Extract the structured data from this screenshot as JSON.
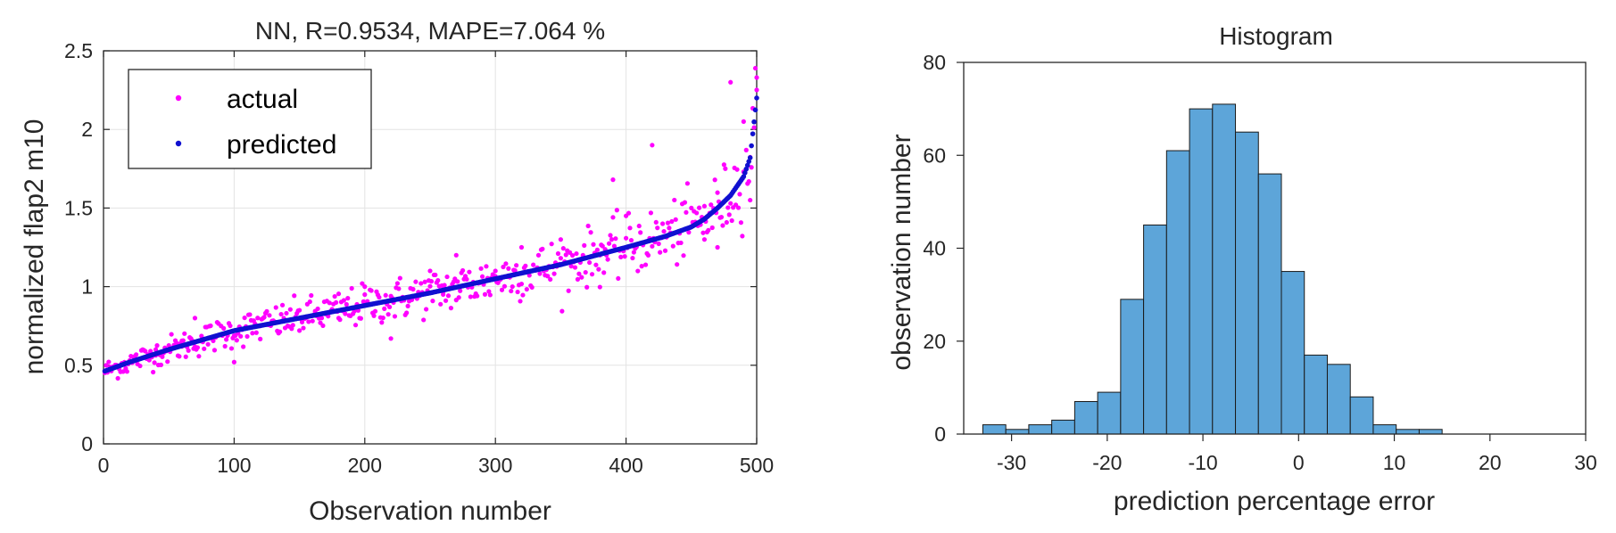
{
  "chart_data": [
    {
      "type": "scatter",
      "title": "NN, R=0.9534, MAPE=7.064 %",
      "xlabel": "Observation number",
      "ylabel": "normalized flap2 m10",
      "xlim": [
        0,
        500
      ],
      "ylim": [
        0,
        2.5
      ],
      "xticks": [
        "0",
        "100",
        "200",
        "300",
        "400",
        "500"
      ],
      "yticks": [
        "0",
        "0.5",
        "1",
        "1.5",
        "2",
        "2.5"
      ],
      "grid": true,
      "legend_position": "top-left",
      "n_points": 500,
      "series": [
        {
          "name": "actual",
          "color": "#ff00ff",
          "description_hint": "actual values scattered around predicted trend",
          "sample_points": [
            [
              5,
              0.48
            ],
            [
              10,
              0.5
            ],
            [
              20,
              0.53
            ],
            [
              40,
              0.6
            ],
            [
              60,
              0.62
            ],
            [
              70,
              0.8
            ],
            [
              100,
              0.52
            ],
            [
              120,
              0.75
            ],
            [
              150,
              0.85
            ],
            [
              180,
              0.8
            ],
            [
              200,
              1.0
            ],
            [
              220,
              0.67
            ],
            [
              250,
              1.1
            ],
            [
              260,
              0.95
            ],
            [
              270,
              1.2
            ],
            [
              300,
              1.1
            ],
            [
              320,
              1.25
            ],
            [
              350,
              1.3
            ],
            [
              380,
              1.2
            ],
            [
              390,
              1.68
            ],
            [
              400,
              1.45
            ],
            [
              420,
              1.9
            ],
            [
              450,
              1.5
            ],
            [
              460,
              1.3
            ],
            [
              470,
              1.25
            ],
            [
              480,
              2.3
            ],
            [
              490,
              2.05
            ],
            [
              495,
              1.55
            ],
            [
              500,
              2.33
            ]
          ]
        },
        {
          "name": "predicted",
          "color": "#1010d0",
          "curve": [
            [
              0,
              0.46
            ],
            [
              20,
              0.52
            ],
            [
              50,
              0.6
            ],
            [
              100,
              0.72
            ],
            [
              150,
              0.8
            ],
            [
              200,
              0.88
            ],
            [
              250,
              0.96
            ],
            [
              300,
              1.05
            ],
            [
              350,
              1.14
            ],
            [
              400,
              1.25
            ],
            [
              430,
              1.32
            ],
            [
              450,
              1.38
            ],
            [
              460,
              1.43
            ],
            [
              470,
              1.5
            ],
            [
              480,
              1.58
            ],
            [
              490,
              1.7
            ],
            [
              495,
              1.82
            ],
            [
              500,
              2.2
            ]
          ]
        }
      ]
    },
    {
      "type": "bar",
      "title": "Histogram",
      "xlabel": "prediction percentage error",
      "ylabel": "observation number",
      "xlim": [
        -35,
        30
      ],
      "ylim": [
        0,
        80
      ],
      "xticks": [
        "-30",
        "-20",
        "-10",
        "0",
        "10",
        "20",
        "30"
      ],
      "yticks": [
        "0",
        "20",
        "40",
        "60",
        "80"
      ],
      "grid": false,
      "bar_color": "#5da5d9",
      "bin_start": -33,
      "bin_width": 2.4,
      "values": [
        2,
        1,
        2,
        3,
        7,
        9,
        29,
        45,
        61,
        70,
        71,
        65,
        56,
        35,
        17,
        15,
        8,
        2,
        1,
        1
      ]
    }
  ]
}
